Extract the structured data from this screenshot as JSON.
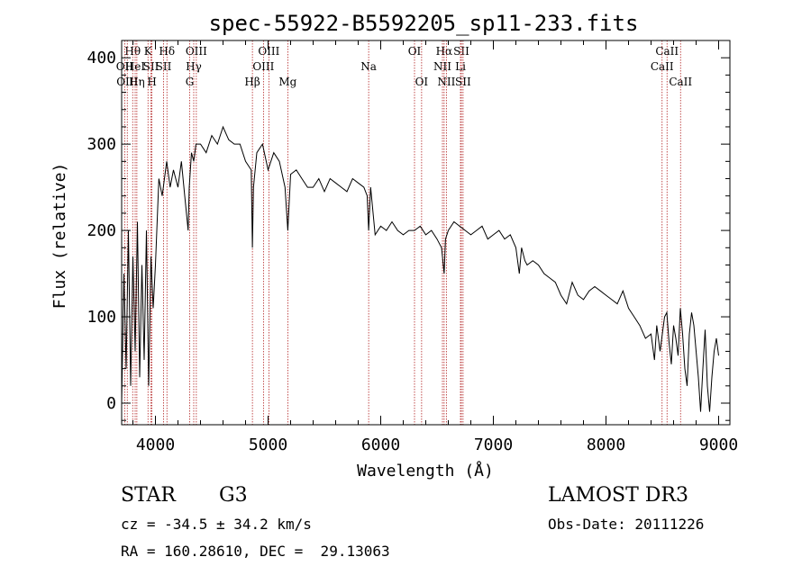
{
  "chart_data": {
    "type": "line",
    "title": "spec-55922-B5592205_sp11-233.fits",
    "xlabel": "Wavelength (Å)",
    "ylabel": "Flux (relative)",
    "xlim": [
      3700,
      9100
    ],
    "ylim": [
      -25,
      420
    ],
    "xticks": [
      4000,
      5000,
      6000,
      7000,
      8000,
      9000
    ],
    "yticks": [
      0,
      100,
      200,
      300,
      400
    ],
    "series": [
      {
        "name": "flux",
        "color": "#000000",
        "x": [
          3700,
          3720,
          3740,
          3760,
          3780,
          3800,
          3820,
          3840,
          3860,
          3880,
          3900,
          3920,
          3940,
          3960,
          3980,
          4000,
          4030,
          4060,
          4100,
          4130,
          4160,
          4200,
          4230,
          4260,
          4290,
          4300,
          4320,
          4340,
          4360,
          4400,
          4450,
          4500,
          4550,
          4600,
          4650,
          4700,
          4750,
          4800,
          4850,
          4861,
          4870,
          4900,
          4950,
          5000,
          5050,
          5100,
          5150,
          5175,
          5200,
          5250,
          5300,
          5350,
          5400,
          5450,
          5500,
          5550,
          5600,
          5650,
          5700,
          5750,
          5800,
          5850,
          5880,
          5893,
          5910,
          5950,
          6000,
          6050,
          6100,
          6150,
          6200,
          6250,
          6300,
          6350,
          6400,
          6450,
          6500,
          6540,
          6563,
          6575,
          6600,
          6650,
          6700,
          6750,
          6800,
          6850,
          6900,
          6950,
          7000,
          7050,
          7100,
          7150,
          7200,
          7230,
          7250,
          7280,
          7300,
          7350,
          7400,
          7450,
          7500,
          7550,
          7600,
          7650,
          7700,
          7750,
          7800,
          7850,
          7900,
          7950,
          8000,
          8050,
          8100,
          8150,
          8200,
          8250,
          8300,
          8350,
          8400,
          8430,
          8450,
          8480,
          8500,
          8520,
          8540,
          8560,
          8580,
          8600,
          8620,
          8640,
          8660,
          8680,
          8700,
          8720,
          8740,
          8760,
          8780,
          8800,
          8820,
          8840,
          8860,
          8880,
          8900,
          8920,
          8940,
          8960,
          8980,
          9000
        ],
        "y": [
          0,
          150,
          40,
          200,
          20,
          170,
          60,
          210,
          30,
          160,
          50,
          200,
          20,
          170,
          110,
          160,
          260,
          240,
          280,
          250,
          270,
          250,
          280,
          240,
          200,
          250,
          290,
          280,
          300,
          300,
          290,
          310,
          300,
          320,
          305,
          300,
          300,
          280,
          270,
          180,
          250,
          290,
          300,
          270,
          290,
          280,
          250,
          200,
          265,
          270,
          260,
          250,
          250,
          260,
          245,
          260,
          255,
          250,
          245,
          260,
          255,
          250,
          240,
          200,
          250,
          195,
          205,
          200,
          210,
          200,
          195,
          200,
          200,
          205,
          195,
          200,
          190,
          180,
          150,
          190,
          200,
          210,
          205,
          200,
          195,
          200,
          205,
          190,
          195,
          200,
          190,
          195,
          180,
          150,
          180,
          165,
          160,
          165,
          160,
          150,
          145,
          140,
          125,
          115,
          140,
          125,
          120,
          130,
          135,
          130,
          125,
          120,
          115,
          130,
          110,
          100,
          90,
          75,
          80,
          50,
          90,
          60,
          80,
          100,
          105,
          70,
          45,
          90,
          75,
          55,
          110,
          80,
          40,
          20,
          80,
          105,
          90,
          60,
          30,
          -10,
          40,
          85,
          20,
          -10,
          30,
          60,
          75,
          55
        ]
      }
    ],
    "lines": [
      {
        "label": "Hθ",
        "x": 3798,
        "row": 0
      },
      {
        "label": "OII",
        "x": 3727,
        "row": 1
      },
      {
        "label": "OIII",
        "x": 3750,
        "row": 2
      },
      {
        "label": "HeI",
        "x": 3820,
        "row": 1
      },
      {
        "label": "Hη",
        "x": 3835,
        "row": 2
      },
      {
        "label": "K",
        "x": 3934,
        "row": 0
      },
      {
        "label": "SII",
        "x": 3960,
        "row": 1
      },
      {
        "label": "H",
        "x": 3969,
        "row": 2
      },
      {
        "label": "Hδ",
        "x": 4102,
        "row": 0
      },
      {
        "label": "SII",
        "x": 4072,
        "row": 1
      },
      {
        "label": "OIII",
        "x": 4363,
        "row": 0
      },
      {
        "label": "Hγ",
        "x": 4340,
        "row": 1
      },
      {
        "label": "G",
        "x": 4304,
        "row": 2
      },
      {
        "label": "Hβ",
        "x": 4861,
        "row": 2
      },
      {
        "label": "OIII",
        "x": 5007,
        "row": 0
      },
      {
        "label": "OIII",
        "x": 4959,
        "row": 1
      },
      {
        "label": "Mg",
        "x": 5175,
        "row": 2
      },
      {
        "label": "Na",
        "x": 5893,
        "row": 1
      },
      {
        "label": "OI",
        "x": 6300,
        "row": 0
      },
      {
        "label": "OI",
        "x": 6363,
        "row": 2
      },
      {
        "label": "Hα",
        "x": 6563,
        "row": 0
      },
      {
        "label": "NII",
        "x": 6548,
        "row": 1
      },
      {
        "label": "NII",
        "x": 6583,
        "row": 2
      },
      {
        "label": "SII",
        "x": 6716,
        "row": 0
      },
      {
        "label": "Li",
        "x": 6708,
        "row": 1
      },
      {
        "label": "SII",
        "x": 6731,
        "row": 2
      },
      {
        "label": "CaII",
        "x": 8542,
        "row": 0
      },
      {
        "label": "CaII",
        "x": 8498,
        "row": 1
      },
      {
        "label": "CaII",
        "x": 8662,
        "row": 2
      }
    ]
  },
  "info": {
    "object_class": "STAR",
    "subclass": "G3",
    "survey": "LAMOST DR3",
    "cz": "cz = -34.5 ± 34.2 km/s",
    "obs_date": "Obs-Date: 20111226",
    "radec": "RA = 160.28610, DEC =  29.13063"
  }
}
